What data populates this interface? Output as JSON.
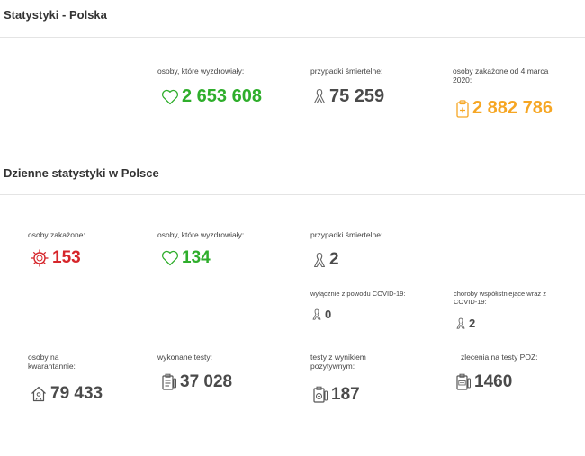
{
  "summary": {
    "title": "Statystyki - Polska",
    "recovered": {
      "label": "osoby, które wyzdrowiały:",
      "value": "2 653 608"
    },
    "deaths": {
      "label": "przypadki śmiertelne:",
      "value": "75 259"
    },
    "infected_since": {
      "label": "osoby zakażone od 4 marca 2020:",
      "value": "2 882 786"
    }
  },
  "daily": {
    "title": "Dzienne statystyki w Polsce",
    "infected": {
      "label": "osoby zakażone:",
      "value": "153"
    },
    "recovered": {
      "label": "osoby, które wyzdrowiały:",
      "value": "134"
    },
    "deaths": {
      "label": "przypadki śmiertelne:",
      "value": "2"
    },
    "deaths_covid_only": {
      "label": "wyłącznie z powodu COVID-19:",
      "value": "0"
    },
    "deaths_comorbid": {
      "label": "choroby współistniejące wraz z COVID-19:",
      "value": "2"
    },
    "quarantine": {
      "label": "osoby na kwarantannie:",
      "value": "79 433"
    },
    "tests": {
      "label": "wykonane testy:",
      "value": "37 028"
    },
    "positive_tests": {
      "label": "testy z wynikiem pozytywnym:",
      "value": "187"
    },
    "poz_orders": {
      "label": "zlecenia na testy POZ:",
      "value": "1460"
    }
  },
  "colors": {
    "green": "#2fae2c",
    "gray": "#4a4a4a",
    "orange": "#f6a623",
    "red": "#d6262b"
  },
  "icons": {
    "recovered": "heart-icon",
    "deaths": "ribbon-icon",
    "infected_total": "clipboard-plus-icon",
    "infected_daily": "virus-icon",
    "quarantine": "house-person-icon",
    "tests": "test-kit-icon",
    "positive_tests": "positive-test-icon",
    "poz_orders": "poz-order-icon"
  }
}
